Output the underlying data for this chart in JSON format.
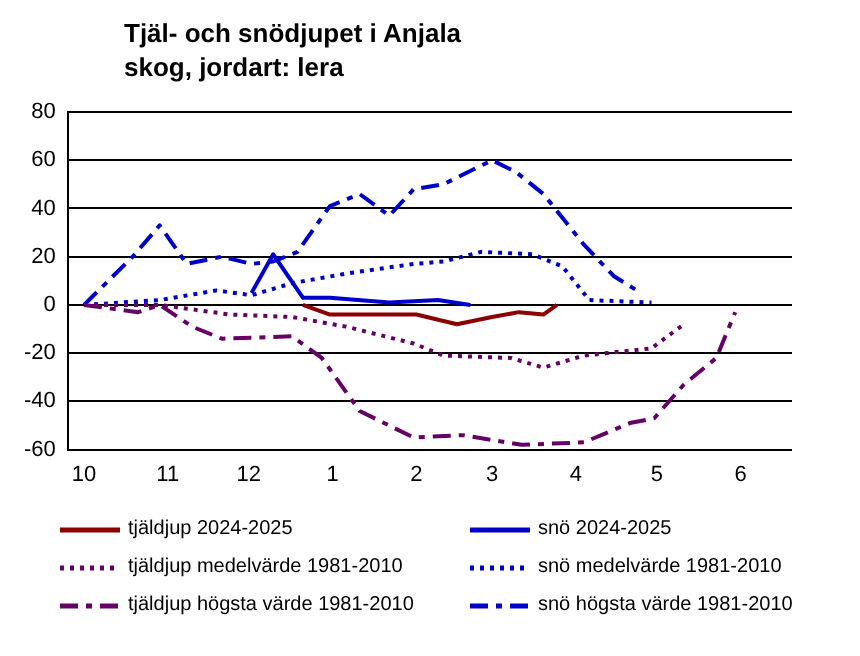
{
  "chart_data": {
    "type": "line",
    "title": "Tjäl- och snödjupet i Anjala\nskog, jordart: lera",
    "xlim": [
      "2024-09-25",
      "2025-06-20"
    ],
    "xticks": [
      {
        "value": "2024-10-01",
        "label": "10"
      },
      {
        "value": "2024-11-01",
        "label": "11"
      },
      {
        "value": "2024-12-01",
        "label": "12"
      },
      {
        "value": "2025-01-01",
        "label": "1"
      },
      {
        "value": "2025-02-01",
        "label": "2"
      },
      {
        "value": "2025-03-01",
        "label": "3"
      },
      {
        "value": "2025-04-01",
        "label": "4"
      },
      {
        "value": "2025-05-01",
        "label": "5"
      },
      {
        "value": "2025-06-01",
        "label": "6"
      }
    ],
    "ylim": [
      -60,
      80
    ],
    "yticks": [
      -60,
      -40,
      -20,
      0,
      20,
      40,
      60,
      80
    ],
    "grid": "y",
    "legend": "bottom",
    "marker": "none",
    "series": [
      {
        "name": "tjäldjup 2024-2025",
        "color": "#8b0000",
        "line_style": "solid",
        "x": [
          "2024-12-21",
          "2024-12-31",
          "2025-01-11",
          "2025-02-01",
          "2025-02-16",
          "2025-03-01",
          "2025-03-11",
          "2025-03-20",
          "2025-03-25"
        ],
        "values": [
          0,
          -4,
          -4,
          -4,
          -8,
          -5,
          -3,
          -4,
          0
        ]
      },
      {
        "name": "tjäldjup medelvärde 1981-2010",
        "color": "#660066",
        "line_style": "dotted",
        "x": [
          "2024-10-01",
          "2024-10-29",
          "2024-11-24",
          "2024-12-17",
          "2025-01-06",
          "2025-01-31",
          "2025-02-11",
          "2025-03-08",
          "2025-03-20",
          "2025-04-04",
          "2025-04-29",
          "2025-05-11"
        ],
        "values": [
          0,
          0,
          -4,
          -5,
          -9,
          -16,
          -21,
          -22,
          -26,
          -21,
          -18,
          -8
        ]
      },
      {
        "name": "tjäldjup högsta värde 1981-2010",
        "color": "#660066",
        "line_style": "dashed",
        "x": [
          "2024-10-01",
          "2024-10-21",
          "2024-10-29",
          "2024-11-10",
          "2024-11-21",
          "2024-12-17",
          "2024-12-28",
          "2025-01-11",
          "2025-01-31",
          "2025-02-18",
          "2025-03-12",
          "2025-04-04",
          "2025-04-21",
          "2025-04-30",
          "2025-05-11",
          "2025-05-23",
          "2025-05-30"
        ],
        "values": [
          0,
          -3,
          0,
          -9,
          -14,
          -13,
          -22,
          -44,
          -55,
          -54,
          -58,
          -57,
          -49,
          -47,
          -33,
          -22,
          -3
        ]
      },
      {
        "name": "snö 2024-2025",
        "color": "#0000cc",
        "line_style": "solid",
        "x": [
          "2024-12-02",
          "2024-12-10",
          "2024-12-21",
          "2024-12-31",
          "2025-01-22",
          "2025-02-09",
          "2025-02-21"
        ],
        "values": [
          5,
          21,
          3,
          3,
          1,
          2,
          0
        ]
      },
      {
        "name": "snö medelvärde 1981-2010",
        "color": "#0000cc",
        "line_style": "dotted",
        "x": [
          "2024-10-01",
          "2024-10-29",
          "2024-11-19",
          "2024-12-02",
          "2024-12-17",
          "2025-01-06",
          "2025-01-31",
          "2025-02-11",
          "2025-02-25",
          "2025-03-16",
          "2025-03-27",
          "2025-04-06",
          "2025-04-29"
        ],
        "values": [
          0,
          2,
          6,
          4,
          9,
          13,
          17,
          18,
          22,
          21,
          16,
          2,
          1
        ]
      },
      {
        "name": "snö högsta värde 1981-2010",
        "color": "#0000cc",
        "line_style": "dashed",
        "x": [
          "2024-10-01",
          "2024-10-19",
          "2024-10-29",
          "2024-11-08",
          "2024-11-21",
          "2024-12-02",
          "2024-12-10",
          "2024-12-19",
          "2024-12-31",
          "2025-01-11",
          "2025-01-22",
          "2025-01-31",
          "2025-02-11",
          "2025-03-01",
          "2025-03-10",
          "2025-03-20",
          "2025-04-04",
          "2025-04-15",
          "2025-04-25"
        ],
        "values": [
          0,
          20,
          33,
          17,
          20,
          17,
          18,
          22,
          41,
          46,
          37,
          48,
          50,
          60,
          55,
          46,
          25,
          12,
          5
        ]
      }
    ]
  }
}
